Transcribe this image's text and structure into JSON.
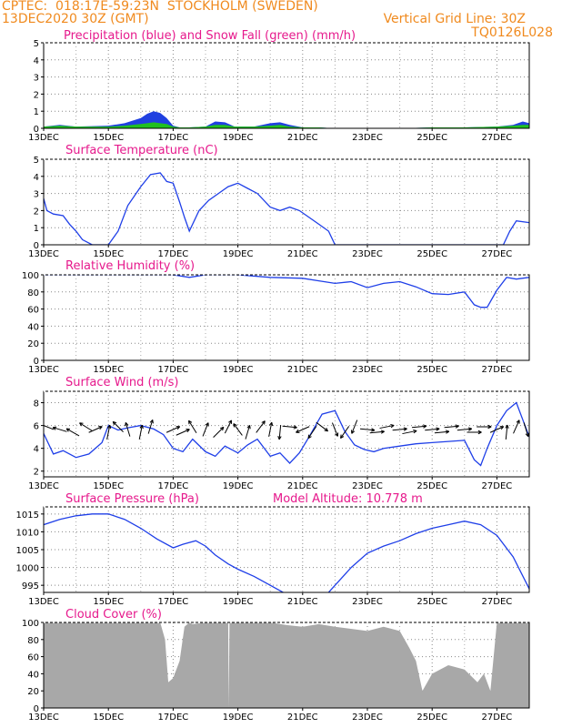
{
  "header": {
    "line1": "CPTEC:  018:17E-59:23N  STOCKHOLM (SWEDEN)",
    "line2": "13DEC2020 30Z (GMT)",
    "grid_note": "Vertical Grid Line: 30Z",
    "model_code": "TQ0126L028"
  },
  "colors": {
    "header": "#f08a1e",
    "panel_title": "#e6198c",
    "line": "#1f3fe8",
    "precip": "#2040e0",
    "snow": "#20c020",
    "cloud": "#a8a8a8"
  },
  "x_tick_labels": [
    "13DEC",
    "15DEC",
    "17DEC",
    "19DEC",
    "21DEC",
    "23DEC",
    "25DEC",
    "27DEC"
  ],
  "x_tick_days": [
    13,
    15,
    17,
    19,
    21,
    23,
    25,
    27
  ],
  "chart_data": [
    {
      "type": "area",
      "title": "Precipitation (blue) and Snow Fall (green) (mm/h)",
      "xlabel": "",
      "ylabel": "",
      "ylim": [
        0,
        5
      ],
      "yticks": [
        0,
        1,
        2,
        3,
        4,
        5
      ],
      "grid": true,
      "series": [
        {
          "name": "Precipitation",
          "color": "#2040e0",
          "x": [
            13.0,
            13.5,
            14.0,
            15.0,
            15.5,
            16.0,
            16.2,
            16.4,
            16.6,
            16.8,
            17.0,
            17.2,
            17.5,
            18.0,
            18.3,
            18.6,
            18.9,
            19.5,
            20.0,
            20.3,
            20.6,
            21.0,
            21.5,
            22.0,
            24.0,
            25.0,
            26.0,
            27.0,
            27.5,
            27.8,
            28.0
          ],
          "y": [
            0.1,
            0.2,
            0.1,
            0.15,
            0.3,
            0.6,
            0.85,
            1.0,
            0.9,
            0.6,
            0.15,
            0.05,
            0.05,
            0.1,
            0.4,
            0.35,
            0.1,
            0.1,
            0.3,
            0.35,
            0.2,
            0.05,
            0.05,
            0.0,
            0.0,
            0.05,
            0.05,
            0.1,
            0.2,
            0.4,
            0.3
          ]
        },
        {
          "name": "Snow Fall",
          "color": "#20c020",
          "x": [
            13.0,
            13.5,
            14.0,
            15.0,
            15.5,
            16.0,
            16.2,
            16.4,
            16.6,
            16.8,
            17.0,
            17.2,
            17.5,
            18.0,
            18.3,
            18.6,
            18.9,
            19.5,
            20.0,
            20.3,
            20.6,
            21.0,
            21.5,
            22.0,
            24.0,
            25.0,
            26.0,
            27.0,
            27.5,
            27.8,
            28.0
          ],
          "y": [
            0.1,
            0.15,
            0.1,
            0.1,
            0.15,
            0.25,
            0.3,
            0.35,
            0.3,
            0.25,
            0.1,
            0.05,
            0.05,
            0.1,
            0.2,
            0.2,
            0.1,
            0.1,
            0.15,
            0.2,
            0.1,
            0.05,
            0.05,
            0.0,
            0.0,
            0.05,
            0.05,
            0.1,
            0.15,
            0.2,
            0.2
          ]
        }
      ]
    },
    {
      "type": "line",
      "title": "Surface Temperature (nC)",
      "xlabel": "",
      "ylabel": "",
      "ylim": [
        0,
        5
      ],
      "yticks": [
        0,
        1,
        2,
        3,
        4,
        5
      ],
      "grid": true,
      "series": [
        {
          "name": "",
          "color": "#1f3fe8",
          "x": [
            13.0,
            13.1,
            13.3,
            13.6,
            13.8,
            14.0,
            14.2,
            14.5,
            15.0,
            15.3,
            15.6,
            16.0,
            16.3,
            16.6,
            16.8,
            17.0,
            17.2,
            17.35,
            17.5,
            17.8,
            18.1,
            18.4,
            18.7,
            19.0,
            19.3,
            19.6,
            20.0,
            20.3,
            20.6,
            20.9,
            21.2,
            21.5,
            21.8,
            22.0,
            23.0,
            25.0,
            26.0,
            27.0,
            27.2,
            27.4,
            27.6,
            28.0
          ],
          "y": [
            2.7,
            2.0,
            1.8,
            1.7,
            1.2,
            0.8,
            0.3,
            0.0,
            0.0,
            0.8,
            2.3,
            3.4,
            4.1,
            4.2,
            3.7,
            3.6,
            2.5,
            1.6,
            0.8,
            2.0,
            2.6,
            3.0,
            3.4,
            3.6,
            3.3,
            3.0,
            2.2,
            2.0,
            2.2,
            2.0,
            1.6,
            1.2,
            0.8,
            0.0,
            0.0,
            0.0,
            0.0,
            0.0,
            0.0,
            0.8,
            1.4,
            1.3
          ]
        }
      ]
    },
    {
      "type": "line",
      "title": "Relative Humidity (%)",
      "xlabel": "",
      "ylabel": "",
      "ylim": [
        0,
        100
      ],
      "yticks": [
        0,
        20,
        40,
        60,
        80,
        100
      ],
      "grid": true,
      "series": [
        {
          "name": "",
          "color": "#1f3fe8",
          "x": [
            13.0,
            14.0,
            15.0,
            16.0,
            17.0,
            17.5,
            18.0,
            19.0,
            20.0,
            21.0,
            21.5,
            22.0,
            22.5,
            23.0,
            23.5,
            24.0,
            24.5,
            25.0,
            25.5,
            26.0,
            26.3,
            26.5,
            26.7,
            27.0,
            27.3,
            27.6,
            28.0
          ],
          "y": [
            100,
            100,
            100,
            100,
            100,
            97,
            100,
            100,
            97,
            96,
            93,
            90,
            92,
            85,
            90,
            92,
            86,
            78,
            77,
            80,
            65,
            62,
            62,
            82,
            97,
            95,
            97
          ]
        }
      ]
    },
    {
      "type": "line",
      "title": "Surface Wind (m/s)",
      "xlabel": "",
      "ylabel": "",
      "ylim": [
        1.5,
        9
      ],
      "yticks": [
        2,
        4,
        6,
        8
      ],
      "grid": true,
      "series": [
        {
          "name": "",
          "color": "#1f3fe8",
          "x": [
            13.0,
            13.3,
            13.6,
            14.0,
            14.4,
            14.8,
            15.0,
            15.3,
            15.6,
            16.0,
            16.4,
            16.7,
            17.0,
            17.3,
            17.6,
            18.0,
            18.3,
            18.6,
            19.0,
            19.3,
            19.6,
            20.0,
            20.3,
            20.6,
            20.9,
            21.2,
            21.6,
            22.0,
            22.3,
            22.6,
            22.9,
            23.2,
            23.5,
            24.0,
            24.5,
            25.0,
            25.5,
            26.0,
            26.3,
            26.5,
            26.7,
            27.0,
            27.3,
            27.6,
            27.8,
            28.0
          ],
          "y": [
            5.3,
            3.5,
            3.8,
            3.2,
            3.5,
            4.5,
            6.0,
            5.6,
            5.8,
            6.0,
            5.7,
            5.2,
            4.0,
            3.7,
            4.8,
            3.7,
            3.3,
            4.2,
            3.6,
            4.3,
            4.8,
            3.3,
            3.6,
            2.7,
            3.6,
            5.0,
            7.0,
            7.3,
            5.5,
            4.3,
            3.9,
            3.7,
            4.0,
            4.2,
            4.4,
            4.5,
            4.6,
            4.7,
            3.0,
            2.5,
            4.0,
            6.0,
            7.3,
            8.0,
            6.5,
            5.0
          ]
        }
      ],
      "vectors": {
        "x": [
          13.1,
          13.5,
          13.9,
          14.3,
          14.6,
          15.0,
          15.3,
          15.6,
          16.0,
          16.3,
          17.0,
          17.3,
          17.6,
          18.0,
          18.4,
          18.7,
          19.0,
          19.3,
          19.7,
          20.0,
          20.3,
          20.6,
          21.0,
          21.3,
          21.6,
          22.0,
          22.3,
          22.6,
          23.0,
          23.3,
          23.6,
          24.0,
          24.3,
          24.6,
          25.0,
          25.3,
          25.6,
          26.0,
          26.3,
          26.6,
          27.0,
          27.3,
          27.6,
          27.9
        ],
        "u": [
          -1,
          -1,
          -0.9,
          -0.8,
          0.9,
          0.2,
          -0.7,
          -0.3,
          0.2,
          0.3,
          0.9,
          0.9,
          -0.5,
          0.4,
          0.7,
          0.5,
          -0.6,
          0.3,
          0.6,
          0.2,
          -0.1,
          1,
          -0.9,
          -0.6,
          0.8,
          0.4,
          -0.7,
          -0.4,
          1,
          1,
          1,
          1,
          1,
          1,
          1,
          1,
          1,
          1,
          1,
          1,
          0.9,
          0.1,
          0.4,
          0.3
        ],
        "v": [
          0.4,
          0.3,
          0.5,
          0.5,
          0.4,
          1,
          0.7,
          1,
          1,
          1,
          0.4,
          0.4,
          0.8,
          1,
          0.7,
          1,
          0.8,
          1,
          0.8,
          1,
          -1,
          -0.1,
          -0.4,
          -0.9,
          -0.6,
          -1,
          -1,
          -1,
          -0.1,
          0.1,
          0.2,
          0.1,
          0.2,
          0.1,
          0.1,
          0.1,
          0.1,
          0.1,
          0,
          0,
          0.4,
          1,
          0.9,
          -1
        ]
      }
    },
    {
      "type": "line",
      "title": "Surface Pressure (hPa)",
      "annotation": "Model Altitude: 10.778 m",
      "xlabel": "",
      "ylabel": "",
      "ylim": [
        993,
        1017
      ],
      "yticks": [
        995,
        1000,
        1005,
        1010,
        1015
      ],
      "grid": true,
      "series": [
        {
          "name": "",
          "color": "#1f3fe8",
          "x": [
            13.0,
            13.5,
            14.0,
            14.5,
            15.0,
            15.5,
            16.0,
            16.5,
            17.0,
            17.3,
            17.7,
            18.0,
            18.3,
            18.7,
            19.0,
            19.5,
            20.0,
            20.5,
            21.0,
            21.5,
            22.0,
            22.5,
            23.0,
            23.5,
            24.0,
            24.5,
            25.0,
            25.5,
            26.0,
            26.5,
            27.0,
            27.5,
            28.0
          ],
          "y": [
            1012,
            1013.5,
            1014.5,
            1015,
            1015,
            1013.5,
            1011,
            1008,
            1005.5,
            1006.5,
            1007.5,
            1006,
            1003.5,
            1001,
            999.5,
            997.5,
            995,
            992.5,
            990,
            990,
            995,
            1000,
            1004,
            1006,
            1007.5,
            1009.5,
            1011,
            1012,
            1013,
            1012,
            1009,
            1003,
            994
          ]
        }
      ]
    },
    {
      "type": "area",
      "title": "Cloud Cover (%)",
      "xlabel": "",
      "ylabel": "",
      "ylim": [
        0,
        100
      ],
      "yticks": [
        0,
        20,
        40,
        60,
        80,
        100
      ],
      "grid": true,
      "series": [
        {
          "name": "",
          "color": "#a8a8a8",
          "x": [
            13.0,
            16.6,
            16.75,
            16.85,
            17.0,
            17.2,
            17.35,
            17.5,
            17.6,
            18.0,
            18.7,
            18.72,
            18.74,
            19.0,
            20.0,
            20.5,
            21.0,
            21.5,
            22.0,
            23.0,
            23.5,
            24.0,
            24.3,
            24.5,
            24.7,
            25.0,
            25.5,
            26.0,
            26.4,
            26.6,
            26.8,
            27.0,
            28.0
          ],
          "y": [
            100,
            100,
            80,
            30,
            35,
            55,
            95,
            100,
            98,
            100,
            100,
            0,
            100,
            100,
            100,
            97,
            95,
            98,
            95,
            90,
            95,
            90,
            70,
            55,
            20,
            40,
            50,
            45,
            30,
            40,
            20,
            100,
            100
          ]
        }
      ]
    }
  ]
}
